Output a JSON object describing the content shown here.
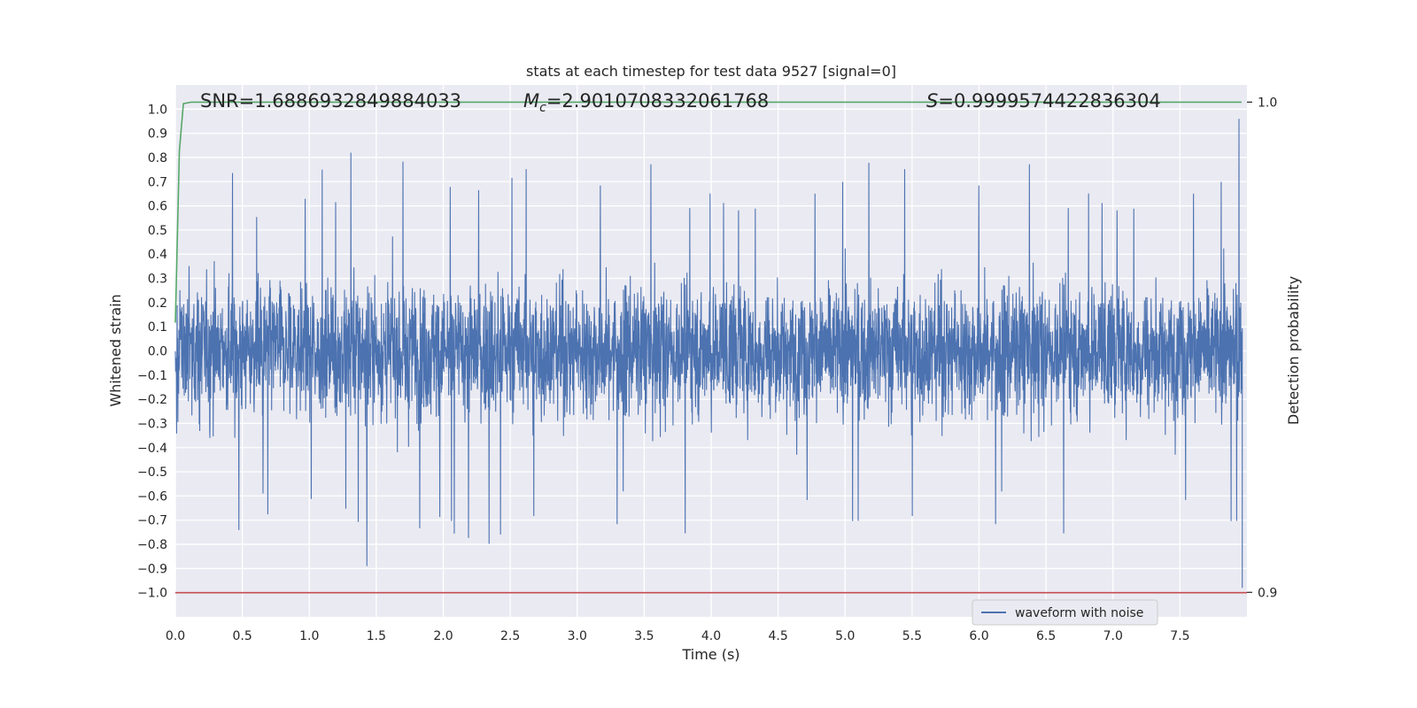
{
  "chart_data": {
    "type": "line",
    "title": "stats at each timestep for test data 9527 [signal=0]",
    "xlabel": "Time (s)",
    "ylabel": "Whitened strain",
    "y2label": "Detection probability",
    "xlim": [
      0.0,
      8.0
    ],
    "ylim": [
      -1.1,
      1.1
    ],
    "y2lim": [
      0.895,
      1.0035
    ],
    "x_ticks": [
      "0.0",
      "0.5",
      "1.0",
      "1.5",
      "2.0",
      "2.5",
      "3.0",
      "3.5",
      "4.0",
      "4.5",
      "5.0",
      "5.5",
      "6.0",
      "6.5",
      "7.0",
      "7.5"
    ],
    "y_ticks": [
      "1.0",
      "0.9",
      "0.8",
      "0.7",
      "0.6",
      "0.5",
      "0.4",
      "0.3",
      "0.2",
      "0.1",
      "0.0",
      "−0.1",
      "−0.2",
      "−0.3",
      "−0.4",
      "−0.5",
      "−0.6",
      "−0.7",
      "−0.8",
      "−0.9",
      "−1.0"
    ],
    "y2_ticks": [
      "1.0",
      "0.9"
    ],
    "grid": true,
    "legend_position": "bottom-right",
    "annotations": {
      "snr": "SNR=1.6886932849884033",
      "mc_symbol": "M",
      "mc_sub": "c",
      "mc_value": "=2.9010708332061768",
      "s_symbol": "S",
      "s_value": "=0.9999574422836304"
    },
    "series": [
      {
        "name": "waveform with noise",
        "color": "#4c72b0",
        "note": "whitened strain noise, amplitude roughly within ±0.5 with spikes up to 0.96 and down to −0.89",
        "peaks": [
          [
            7.94,
            0.96
          ],
          [
            1.31,
            0.82
          ],
          [
            1.43,
            -0.89
          ]
        ]
      },
      {
        "color": "#55a868",
        "axis": "right",
        "x": [
          0.0,
          0.03,
          0.06,
          0.12,
          0.5,
          1.0,
          2.0,
          3.0,
          4.0,
          5.0,
          6.0,
          7.0,
          7.96
        ],
        "y": [
          0.955,
          0.99,
          0.9997,
          1.0,
          1.0,
          1.0,
          1.0,
          1.0,
          1.0,
          1.0,
          1.0,
          1.0,
          1.0
        ]
      },
      {
        "color": "#c44e52",
        "x": [
          0.0,
          8.0
        ],
        "y": [
          -1.0,
          -1.0
        ]
      }
    ]
  }
}
